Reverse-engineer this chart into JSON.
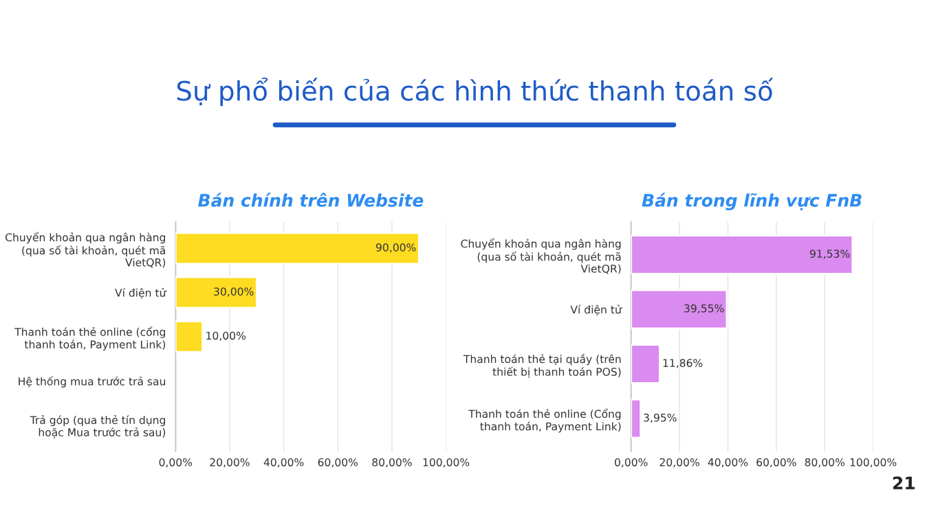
{
  "chart_data": [
    {
      "type": "bar",
      "orientation": "horizontal",
      "title": "Bán chính trên Website",
      "categories": [
        "Chuyển khoản qua ngân hàng\n(qua số tài khoản, quét mã\nVietQR)",
        "Ví điện tử",
        "Thanh toán thẻ online (cổng\nthanh toán, Payment Link)",
        "Hệ thống mua trước trả sau",
        "Trả góp (qua thẻ tín dụng\nhoặc Mua trước trả sau)"
      ],
      "values": [
        90,
        30,
        10,
        null,
        null
      ],
      "value_labels": [
        "90,00%",
        "30,00%",
        "10,00%",
        null,
        null
      ],
      "color": "#fddc22",
      "xlim": [
        0,
        100
      ],
      "xticks": [
        {
          "value": 0,
          "label": "0,00%"
        },
        {
          "value": 20,
          "label": "20,00%"
        },
        {
          "value": 40,
          "label": "40,00%"
        },
        {
          "value": 60,
          "label": "60,00%"
        },
        {
          "value": 80,
          "label": "80,00%"
        },
        {
          "value": 100,
          "label": "100,00%"
        }
      ],
      "grid": "x",
      "annotations": [
        "Sự phổ biến của các hình thức thanh toán số"
      ]
    },
    {
      "type": "bar",
      "orientation": "horizontal",
      "title": "Bán trong lĩnh vực FnB",
      "categories": [
        "Chuyển khoản qua ngân hàng\n(qua số tài khoản, quét mã\nVietQR)",
        "Ví điện tử",
        "Thanh toán thẻ tại quầy (trên\nthiết bị thanh toán POS)",
        "Thanh toán thẻ online (Cổng\nthanh toán, Payment Link)"
      ],
      "values": [
        91.53,
        39.55,
        11.86,
        3.95
      ],
      "value_labels": [
        "91,53%",
        "39,55%",
        "11,86%",
        "3,95%"
      ],
      "color": "#d98bef",
      "xlim": [
        0,
        100
      ],
      "xticks": [
        {
          "value": 0,
          "label": "0,00%"
        },
        {
          "value": 20,
          "label": "20,00%"
        },
        {
          "value": 40,
          "label": "40,00%"
        },
        {
          "value": 60,
          "label": "60,00%"
        },
        {
          "value": 80,
          "label": "80,00%"
        },
        {
          "value": 100,
          "label": "100,00%"
        }
      ],
      "grid": "x",
      "annotations": [
        "21"
      ]
    }
  ]
}
